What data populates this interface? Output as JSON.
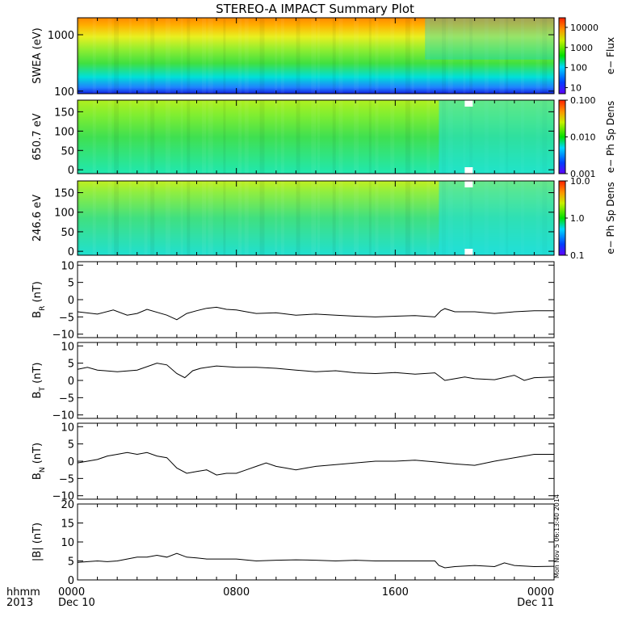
{
  "title": "STEREO-A IMPACT Summary Plot",
  "x_axis": {
    "ticks": [
      "0000",
      "0800",
      "1600",
      "0000"
    ],
    "tick_positions_hours": [
      0,
      8,
      16,
      24
    ],
    "date_labels": [
      "Dec 10",
      "Dec 11"
    ],
    "corner_labels": [
      "hhmm",
      "2013"
    ],
    "range_hours": [
      0,
      24
    ]
  },
  "timestamp": "Mon Nov  5 06:13:40 2014",
  "chart_data": [
    {
      "type": "heatmap",
      "ylabel": "SWEA (eV)",
      "ylog": true,
      "ylim": [
        90,
        2000
      ],
      "yticks": [
        "100",
        "1000"
      ],
      "ytick_values": [
        100,
        1000
      ],
      "colorbar": {
        "label": "e− Flux",
        "ticks": [
          "10",
          "100",
          "1000",
          "10000"
        ],
        "range": [
          5,
          30000
        ],
        "log": true
      }
    },
    {
      "type": "heatmap",
      "ylabel": "650.7 eV",
      "ylim": [
        -10,
        180
      ],
      "yticks": [
        "0",
        "50",
        "100",
        "150"
      ],
      "ytick_values": [
        0,
        50,
        100,
        150
      ],
      "colorbar": {
        "label": "e− Ph Sp Dens",
        "ticks": [
          "0.001",
          "0.010",
          "0.100"
        ],
        "range": [
          0.001,
          0.1
        ],
        "log": true
      }
    },
    {
      "type": "heatmap",
      "ylabel": "246.6 eV",
      "ylim": [
        -10,
        180
      ],
      "yticks": [
        "0",
        "50",
        "100",
        "150"
      ],
      "ytick_values": [
        0,
        50,
        100,
        150
      ],
      "colorbar": {
        "label": "e− Ph Sp Dens",
        "ticks": [
          "0.1",
          "1.0",
          "10.0"
        ],
        "range": [
          0.1,
          10
        ],
        "log": true
      }
    },
    {
      "type": "line",
      "ylabel": "B",
      "ylabel_sub": "R",
      "ylabel_unit": " (nT)",
      "ylim": [
        -11,
        11
      ],
      "yticks": [
        "10",
        "5",
        "0",
        "−5",
        "−10"
      ],
      "ytick_values": [
        10,
        5,
        0,
        -5,
        -10
      ],
      "x": [
        0,
        1,
        1.8,
        2.5,
        3,
        3.5,
        4.5,
        5,
        5.5,
        6,
        6.5,
        7,
        7.5,
        8,
        8.5,
        9,
        10,
        11,
        12,
        13,
        14,
        15,
        16,
        17,
        18,
        18.3,
        18.5,
        19,
        20,
        21,
        22,
        23,
        24
      ],
      "values": [
        -3.5,
        -4.2,
        -3.0,
        -4.5,
        -4.0,
        -2.8,
        -4.5,
        -5.8,
        -4.0,
        -3.2,
        -2.5,
        -2.2,
        -2.8,
        -3.0,
        -3.5,
        -4.0,
        -3.8,
        -4.5,
        -4.2,
        -4.5,
        -4.8,
        -5.0,
        -4.8,
        -4.6,
        -5.0,
        -3.2,
        -2.6,
        -3.5,
        -3.5,
        -4.0,
        -3.5,
        -3.2,
        -3.2
      ]
    },
    {
      "type": "line",
      "ylabel": "B",
      "ylabel_sub": "T",
      "ylabel_unit": " (nT)",
      "ylim": [
        -11,
        11
      ],
      "yticks": [
        "10",
        "5",
        "0",
        "−5",
        "−10"
      ],
      "ytick_values": [
        10,
        5,
        0,
        -5,
        -10
      ],
      "x": [
        0,
        0.5,
        1,
        2,
        3,
        4,
        4.5,
        5,
        5.4,
        5.8,
        6.2,
        7,
        8,
        9,
        10,
        11,
        12,
        13,
        14,
        15,
        16,
        17,
        18,
        18.5,
        19,
        19.5,
        20,
        21,
        22,
        22.5,
        23,
        24
      ],
      "values": [
        3.2,
        3.8,
        3.0,
        2.5,
        3.0,
        5.0,
        4.5,
        2.0,
        0.8,
        2.8,
        3.5,
        4.2,
        3.8,
        3.8,
        3.5,
        3.0,
        2.5,
        2.8,
        2.2,
        2.0,
        2.3,
        1.8,
        2.2,
        0.0,
        0.5,
        1.0,
        0.5,
        0.2,
        1.5,
        0.0,
        0.8,
        1.0
      ]
    },
    {
      "type": "line",
      "ylabel": "B",
      "ylabel_sub": "N",
      "ylabel_unit": " (nT)",
      "ylim": [
        -11,
        11
      ],
      "yticks": [
        "10",
        "5",
        "0",
        "−5",
        "−10"
      ],
      "ytick_values": [
        10,
        5,
        0,
        -5,
        -10
      ],
      "x": [
        0,
        0.5,
        1,
        1.5,
        2,
        2.5,
        3,
        3.5,
        4,
        4.5,
        5,
        5.5,
        6,
        6.5,
        7,
        7.5,
        8,
        8.5,
        9,
        9.5,
        10,
        10.5,
        11,
        11.5,
        12,
        13,
        14,
        15,
        16,
        17,
        18,
        19,
        20,
        21,
        22,
        23,
        24
      ],
      "values": [
        -0.5,
        0.0,
        0.5,
        1.5,
        2.0,
        2.5,
        2.0,
        2.5,
        1.5,
        1.0,
        -2.0,
        -3.5,
        -3.0,
        -2.5,
        -4.0,
        -3.5,
        -3.5,
        -2.5,
        -1.5,
        -0.5,
        -1.5,
        -2.0,
        -2.5,
        -2.0,
        -1.5,
        -1.0,
        -0.5,
        0.0,
        0.0,
        0.3,
        -0.2,
        -0.8,
        -1.2,
        0.0,
        1.0,
        2.0,
        2.0
      ]
    },
    {
      "type": "line",
      "ylabel": "|B| (nT)",
      "ylim": [
        0,
        20
      ],
      "yticks": [
        "20",
        "15",
        "10",
        "5",
        "0"
      ],
      "ytick_values": [
        20,
        15,
        10,
        5,
        0
      ],
      "x": [
        0,
        0.5,
        1,
        1.5,
        2,
        2.5,
        3,
        3.5,
        4,
        4.5,
        5,
        5.5,
        6,
        6.5,
        7,
        8,
        9,
        10,
        11,
        12,
        13,
        14,
        15,
        16,
        17,
        18,
        18.2,
        18.5,
        19,
        20,
        21,
        21.5,
        22,
        23,
        24
      ],
      "values": [
        4.6,
        4.8,
        5.0,
        4.8,
        5.0,
        5.5,
        6.0,
        6.0,
        6.5,
        6.0,
        7.0,
        6.0,
        5.8,
        5.5,
        5.5,
        5.5,
        5.0,
        5.2,
        5.3,
        5.2,
        5.0,
        5.2,
        5.0,
        5.0,
        5.0,
        5.0,
        3.8,
        3.2,
        3.5,
        3.8,
        3.5,
        4.5,
        3.8,
        3.5,
        3.6
      ]
    }
  ]
}
